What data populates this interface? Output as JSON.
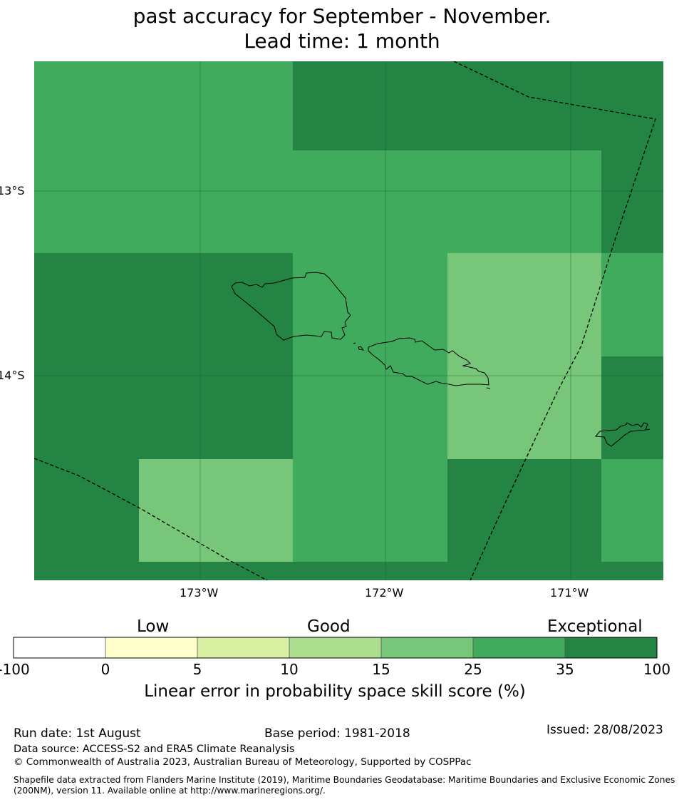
{
  "title": {
    "line1": "past accuracy for September - November.",
    "line2": "Lead time: 1 month"
  },
  "map": {
    "x_labels": [
      "173°W",
      "172°W",
      "171°W"
    ],
    "y_labels": [
      "13°S",
      "14°S"
    ]
  },
  "colorbar": {
    "categories": [
      "Low",
      "Good",
      "Exceptional"
    ],
    "ticks": [
      "-100",
      "0",
      "5",
      "10",
      "15",
      "25",
      "35",
      "100"
    ],
    "colors": [
      "#ffffff",
      "#ffffcc",
      "#d9f0a3",
      "#addd8e",
      "#78c679",
      "#41ab5d",
      "#238443"
    ],
    "label": "Linear error in probability space skill score (%)"
  },
  "footer": {
    "run_date": "Run date: 1st August",
    "base_period": "Base period: 1981-2018",
    "issued": "Issued: 28/08/2023",
    "data_source": "Data source: ACCESS-S2 and ERA5 Climate Reanalysis",
    "copyright": "© Commonwealth of Australia 2023, Australian Bureau of Meteorology, Supported by COSPPac",
    "shapefile_line1": "Shapefile data extracted from Flanders Marine Institute (2019), Maritime Boundaries Geodatabase: Maritime Boundaries and Exclusive Economic Zones",
    "shapefile_line2": "(200NM), version 11. Available online at http://www.marineregions.org/."
  }
}
